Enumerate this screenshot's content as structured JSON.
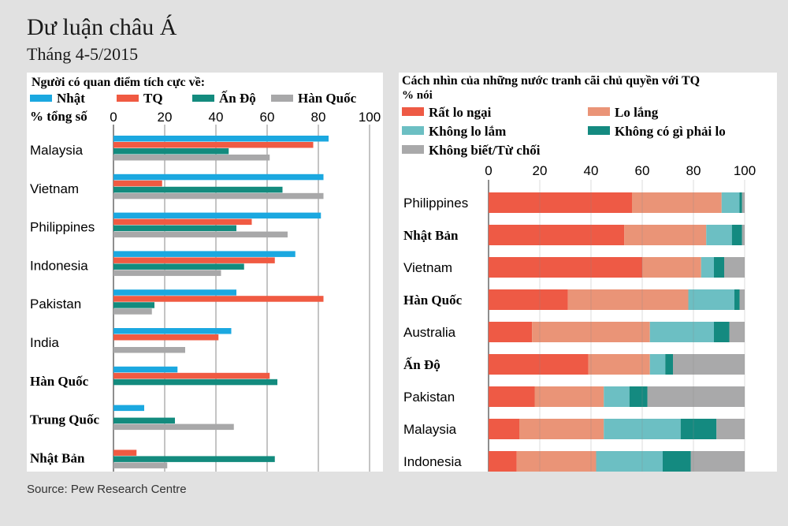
{
  "title": "Dư luận châu Á",
  "subtitle": "Tháng 4-5/2015",
  "source": "Source: Pew Research Centre",
  "colors": {
    "japan": "#1ba8e0",
    "china": "#f05a42",
    "india": "#138b7e",
    "korea": "#a8a8a9",
    "very_concerned": "#ee5a45",
    "somewhat_concerned": "#ea9477",
    "not_too_concerned": "#6cbfc3",
    "not_at_all": "#148a80",
    "dont_know": "#a9a9aa",
    "gridline": "#8a8a8a",
    "panel_bg": "#ffffff"
  },
  "chart_data": [
    {
      "type": "bar",
      "orientation": "horizontal",
      "title": "Người có quan điểm tích cực về:",
      "xlabel": "% tổng số",
      "xlim": [
        0,
        100
      ],
      "xticks": [
        0,
        20,
        40,
        60,
        80,
        100
      ],
      "legend": [
        "Nhật",
        "TQ",
        "Ấn Độ",
        "Hàn Quốc"
      ],
      "categories": [
        "Malaysia",
        "Vietnam",
        "Philippines",
        "Indonesia",
        "Pakistan",
        "India",
        "Hàn Quốc",
        "Trung Quốc",
        "Nhật Bản"
      ],
      "bold_categories": [
        "Hàn Quốc",
        "Trung Quốc",
        "Nhật Bản"
      ],
      "series": [
        {
          "name": "Nhật",
          "color_key": "japan",
          "values": [
            84,
            82,
            81,
            71,
            48,
            46,
            25,
            12,
            null
          ]
        },
        {
          "name": "TQ",
          "color_key": "china",
          "values": [
            78,
            19,
            54,
            63,
            82,
            41,
            61,
            null,
            9
          ]
        },
        {
          "name": "Ấn Độ",
          "color_key": "india",
          "values": [
            45,
            66,
            48,
            51,
            16,
            null,
            64,
            24,
            63
          ]
        },
        {
          "name": "Hàn Quốc",
          "color_key": "korea",
          "values": [
            61,
            82,
            68,
            42,
            15,
            28,
            null,
            47,
            21
          ]
        }
      ]
    },
    {
      "type": "bar",
      "orientation": "horizontal",
      "stacked": true,
      "title": "Cách nhìn của những nước tranh cãi chủ quyền với TQ",
      "xlabel": "% nói",
      "xlim": [
        0,
        100
      ],
      "xticks": [
        0,
        20,
        40,
        60,
        80,
        100
      ],
      "categories": [
        "Philippines",
        "Nhật Bản",
        "Vietnam",
        "Hàn Quốc",
        "Australia",
        "Ấn Độ",
        "Pakistan",
        "Malaysia",
        "Indonesia"
      ],
      "bold_categories": [
        "Nhật Bản",
        "Hàn Quốc",
        "Ấn Độ"
      ],
      "series": [
        {
          "name": "Rất lo ngại",
          "color_key": "very_concerned",
          "values": [
            56,
            53,
            60,
            31,
            17,
            39,
            18,
            12,
            11
          ]
        },
        {
          "name": "Lo lắng",
          "color_key": "somewhat_concerned",
          "values": [
            35,
            32,
            23,
            47,
            46,
            24,
            27,
            33,
            31
          ]
        },
        {
          "name": "Không lo lắm",
          "color_key": "not_too_concerned",
          "values": [
            7,
            10,
            5,
            18,
            25,
            6,
            10,
            30,
            26
          ]
        },
        {
          "name": "Không có gì phải lo",
          "color_key": "not_at_all",
          "values": [
            1,
            4,
            4,
            2,
            6,
            3,
            7,
            14,
            11
          ]
        },
        {
          "name": "Không biết/Từ chối",
          "color_key": "dont_know",
          "values": [
            1,
            1,
            8,
            2,
            6,
            28,
            38,
            11,
            21
          ]
        }
      ]
    }
  ]
}
